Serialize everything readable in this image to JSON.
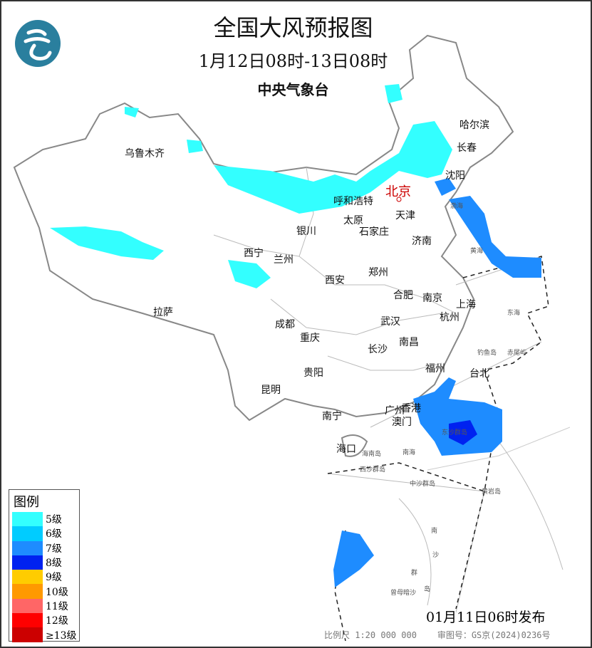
{
  "header": {
    "title": "全国大风预报图",
    "period": "1月12日08时-13日08时",
    "agency": "中央气象台"
  },
  "logo": {
    "icon": "cma-logo",
    "color": "#2a7f9e"
  },
  "cities": [
    {
      "name": "哈尔滨"
    },
    {
      "name": "长春"
    },
    {
      "name": "沈阳"
    },
    {
      "name": "乌鲁木齐"
    },
    {
      "name": "北京",
      "capital": true
    },
    {
      "name": "呼和浩特"
    },
    {
      "name": "天津"
    },
    {
      "name": "太原"
    },
    {
      "name": "石家庄"
    },
    {
      "name": "银川"
    },
    {
      "name": "济南"
    },
    {
      "name": "西宁"
    },
    {
      "name": "兰州"
    },
    {
      "name": "郑州"
    },
    {
      "name": "西安"
    },
    {
      "name": "合肥"
    },
    {
      "name": "南京"
    },
    {
      "name": "上海"
    },
    {
      "name": "拉萨"
    },
    {
      "name": "武汉"
    },
    {
      "name": "杭州"
    },
    {
      "name": "成都"
    },
    {
      "name": "重庆"
    },
    {
      "name": "南昌"
    },
    {
      "name": "长沙"
    },
    {
      "name": "福州"
    },
    {
      "name": "台北"
    },
    {
      "name": "贵阳"
    },
    {
      "name": "昆明"
    },
    {
      "name": "南宁"
    },
    {
      "name": "广州"
    },
    {
      "name": "香港"
    },
    {
      "name": "澳门"
    },
    {
      "name": "海口"
    }
  ],
  "seas": [
    "渤海",
    "黄海",
    "东海",
    "南海",
    "钓鱼岛",
    "赤尾屿",
    "东沙群岛",
    "海南岛",
    "西沙群岛",
    "中沙群岛",
    "黄岩岛",
    "南",
    "沙",
    "群",
    "岛",
    "曾母暗沙"
  ],
  "legend": {
    "title": "图例",
    "items": [
      {
        "label": "5级",
        "color": "#33ffff"
      },
      {
        "label": "6级",
        "color": "#00ccff"
      },
      {
        "label": "7级",
        "color": "#1e8cff"
      },
      {
        "label": "8级",
        "color": "#0022f0"
      },
      {
        "label": "9级",
        "color": "#ffcc00"
      },
      {
        "label": "10级",
        "color": "#ff9900"
      },
      {
        "label": "11级",
        "color": "#ff6666"
      },
      {
        "label": "12级",
        "color": "#ff0000"
      },
      {
        "label": "≥13级",
        "color": "#cc0000"
      }
    ]
  },
  "footer": {
    "issued": "01月11日06时发布",
    "scale": "比例尺 1:20 000 000",
    "review_no": "审图号：GS京(2024)0236号"
  }
}
